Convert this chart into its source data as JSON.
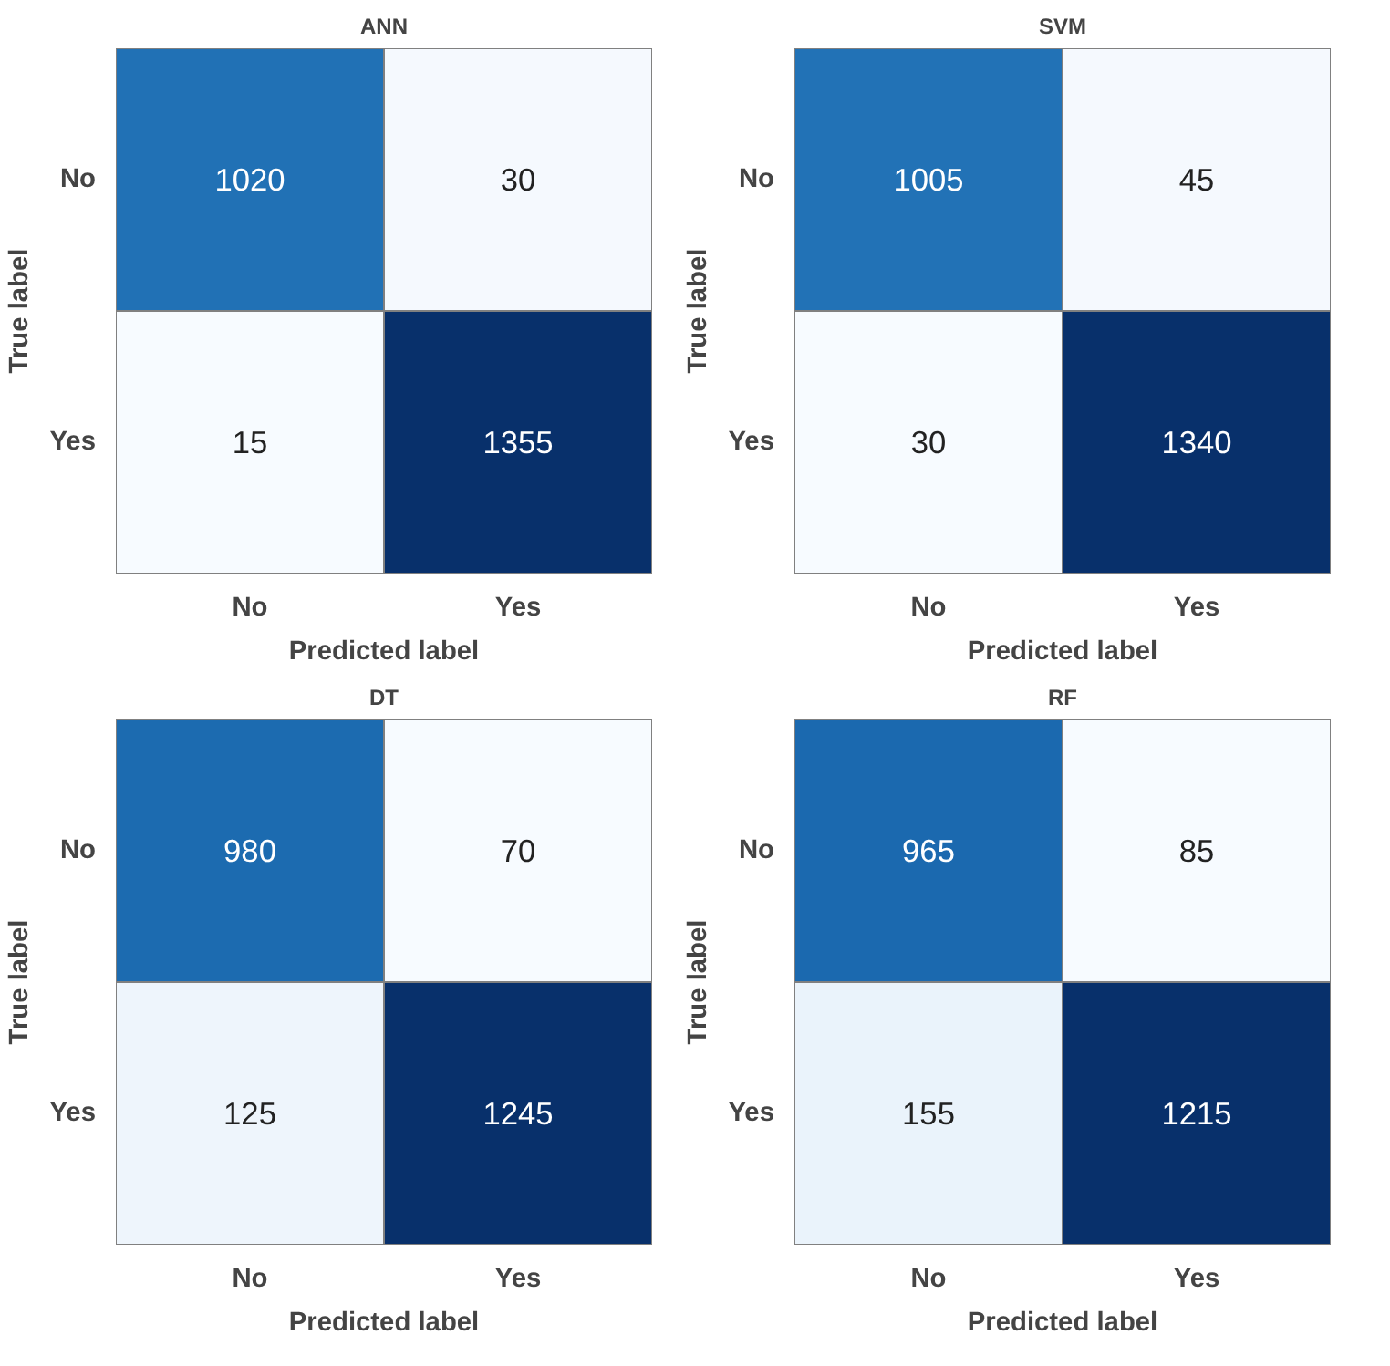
{
  "chart_data": [
    {
      "type": "heatmap",
      "title": "ANN",
      "data_labels": true,
      "xlabel": "Predicted label",
      "ylabel": "True label",
      "categories": [
        "No",
        "Yes"
      ],
      "y_categories": [
        "No",
        "Yes"
      ],
      "cells": [
        [
          1020,
          30
        ],
        [
          15,
          1355
        ]
      ]
    },
    {
      "type": "heatmap",
      "title": "SVM",
      "data_labels": true,
      "xlabel": "Predicted label",
      "ylabel": "True label",
      "categories": [
        "No",
        "Yes"
      ],
      "y_categories": [
        "No",
        "Yes"
      ],
      "cells": [
        [
          1005,
          45
        ],
        [
          30,
          1340
        ]
      ]
    },
    {
      "type": "heatmap",
      "title": "DT",
      "data_labels": true,
      "xlabel": "Predicted label",
      "ylabel": "True label",
      "categories": [
        "No",
        "Yes"
      ],
      "y_categories": [
        "No",
        "Yes"
      ],
      "cells": [
        [
          980,
          70
        ],
        [
          125,
          1245
        ]
      ]
    },
    {
      "type": "heatmap",
      "title": "RF",
      "data_labels": true,
      "xlabel": "Predicted label",
      "ylabel": "True label",
      "categories": [
        "No",
        "Yes"
      ],
      "y_categories": [
        "No",
        "Yes"
      ],
      "cells": [
        [
          965,
          85
        ],
        [
          155,
          1215
        ]
      ]
    }
  ]
}
